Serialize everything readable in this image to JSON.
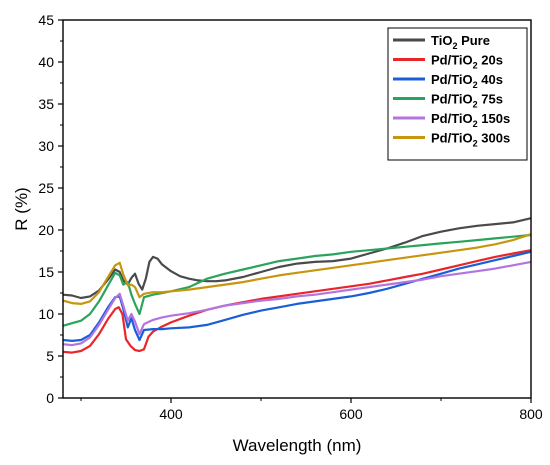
{
  "chart_data": {
    "type": "line",
    "title": "",
    "xlabel": "Wavelength (nm)",
    "ylabel": "R (%)",
    "xlim": [
      280,
      800
    ],
    "ylim": [
      0,
      45
    ],
    "xticks": [
      400,
      600,
      800
    ],
    "yticks": [
      0,
      5,
      10,
      15,
      20,
      25,
      30,
      35,
      40,
      45
    ],
    "grid": false,
    "legend_position": "top-right",
    "series": [
      {
        "name": "TiO2 Pure",
        "legend": {
          "base": "TiO",
          "sub": "2",
          "rest": " Pure"
        },
        "color": "#4a4a4a",
        "x": [
          280,
          290,
          300,
          310,
          320,
          330,
          338,
          343,
          347,
          352,
          356,
          360,
          364,
          368,
          372,
          376,
          380,
          385,
          390,
          400,
          410,
          420,
          430,
          440,
          450,
          460,
          480,
          500,
          520,
          540,
          560,
          580,
          600,
          620,
          640,
          660,
          680,
          700,
          720,
          740,
          760,
          780,
          800
        ],
        "y": [
          12.3,
          12.2,
          11.9,
          12.1,
          12.8,
          14.1,
          15.3,
          15.0,
          14.0,
          13.5,
          14.3,
          14.8,
          13.6,
          12.9,
          14.2,
          16.2,
          16.8,
          16.6,
          15.9,
          15.1,
          14.5,
          14.2,
          14.0,
          13.9,
          13.9,
          14.0,
          14.4,
          15.0,
          15.6,
          16.0,
          16.2,
          16.3,
          16.6,
          17.2,
          17.8,
          18.5,
          19.3,
          19.8,
          20.2,
          20.5,
          20.7,
          20.9,
          21.4
        ]
      },
      {
        "name": "Pd/TiO2 20s",
        "legend": {
          "base": "Pd/TiO",
          "sub": "2",
          "rest": " 20s"
        },
        "color": "#e8262a",
        "x": [
          280,
          290,
          300,
          310,
          320,
          330,
          338,
          342,
          346,
          350,
          355,
          360,
          365,
          370,
          375,
          380,
          390,
          400,
          420,
          440,
          460,
          480,
          500,
          520,
          540,
          560,
          580,
          600,
          620,
          640,
          660,
          680,
          700,
          720,
          740,
          760,
          780,
          800
        ],
        "y": [
          5.5,
          5.4,
          5.6,
          6.2,
          7.6,
          9.4,
          10.6,
          10.8,
          10.0,
          7.0,
          6.2,
          5.7,
          5.6,
          5.8,
          7.3,
          7.9,
          8.5,
          9.0,
          9.8,
          10.5,
          11.0,
          11.4,
          11.8,
          12.1,
          12.4,
          12.7,
          13.0,
          13.3,
          13.6,
          14.0,
          14.4,
          14.8,
          15.3,
          15.8,
          16.3,
          16.8,
          17.2,
          17.6
        ]
      },
      {
        "name": "Pd/TiO2 40s",
        "legend": {
          "base": "Pd/TiO",
          "sub": "2",
          "rest": " 40s"
        },
        "color": "#1a5fd8",
        "x": [
          280,
          290,
          300,
          310,
          320,
          330,
          338,
          343,
          347,
          352,
          356,
          360,
          365,
          370,
          380,
          390,
          400,
          420,
          440,
          460,
          480,
          500,
          520,
          540,
          560,
          580,
          600,
          620,
          640,
          660,
          680,
          700,
          720,
          740,
          760,
          780,
          800
        ],
        "y": [
          6.9,
          6.8,
          6.9,
          7.5,
          9.0,
          10.8,
          12.0,
          12.1,
          10.6,
          8.4,
          9.5,
          8.1,
          6.9,
          8.1,
          8.2,
          8.2,
          8.3,
          8.4,
          8.7,
          9.3,
          9.9,
          10.4,
          10.8,
          11.2,
          11.5,
          11.8,
          12.1,
          12.5,
          13.0,
          13.6,
          14.2,
          14.8,
          15.4,
          15.9,
          16.4,
          16.9,
          17.4
        ]
      },
      {
        "name": "Pd/TiO2 75s",
        "legend": {
          "base": "Pd/TiO",
          "sub": "2",
          "rest": " 75s"
        },
        "color": "#2aa45c",
        "x": [
          280,
          290,
          300,
          310,
          320,
          330,
          338,
          343,
          347,
          352,
          356,
          360,
          365,
          370,
          380,
          390,
          400,
          420,
          440,
          460,
          480,
          500,
          520,
          540,
          560,
          580,
          600,
          620,
          640,
          660,
          680,
          700,
          720,
          740,
          760,
          780,
          800
        ],
        "y": [
          8.6,
          8.9,
          9.2,
          10.0,
          11.5,
          13.4,
          14.9,
          14.6,
          13.5,
          13.8,
          12.3,
          11.2,
          10.0,
          12.0,
          12.3,
          12.5,
          12.7,
          13.2,
          14.2,
          14.8,
          15.3,
          15.8,
          16.3,
          16.6,
          16.9,
          17.1,
          17.4,
          17.6,
          17.8,
          18.0,
          18.2,
          18.4,
          18.6,
          18.8,
          19.0,
          19.2,
          19.4
        ]
      },
      {
        "name": "Pd/TiO2 150s",
        "legend": {
          "base": "Pd/TiO",
          "sub": "2",
          "rest": " 150s"
        },
        "color": "#b474e0",
        "x": [
          280,
          290,
          300,
          310,
          320,
          330,
          338,
          343,
          347,
          352,
          356,
          360,
          365,
          370,
          380,
          390,
          400,
          420,
          440,
          460,
          480,
          500,
          520,
          540,
          560,
          580,
          600,
          620,
          640,
          660,
          680,
          700,
          720,
          740,
          760,
          780,
          800
        ],
        "y": [
          6.4,
          6.3,
          6.5,
          7.2,
          8.7,
          10.5,
          11.9,
          12.4,
          11.0,
          9.2,
          10.0,
          9.1,
          7.6,
          8.8,
          9.3,
          9.6,
          9.8,
          10.1,
          10.5,
          11.0,
          11.3,
          11.6,
          11.8,
          12.1,
          12.3,
          12.6,
          12.9,
          13.2,
          13.5,
          13.8,
          14.1,
          14.5,
          14.8,
          15.1,
          15.4,
          15.8,
          16.2
        ]
      },
      {
        "name": "Pd/TiO2 300s",
        "legend": {
          "base": "Pd/TiO",
          "sub": "2",
          "rest": " 300s"
        },
        "color": "#c8960e",
        "x": [
          280,
          290,
          300,
          310,
          320,
          330,
          338,
          343,
          347,
          352,
          356,
          360,
          365,
          370,
          380,
          390,
          400,
          420,
          440,
          460,
          480,
          500,
          520,
          540,
          560,
          580,
          600,
          620,
          640,
          660,
          680,
          700,
          720,
          740,
          760,
          780,
          800
        ],
        "y": [
          11.6,
          11.3,
          11.2,
          11.5,
          12.6,
          14.4,
          15.8,
          16.1,
          14.7,
          13.4,
          13.5,
          13.2,
          12.0,
          12.4,
          12.6,
          12.6,
          12.7,
          12.9,
          13.2,
          13.5,
          13.8,
          14.2,
          14.6,
          14.9,
          15.2,
          15.5,
          15.8,
          16.1,
          16.4,
          16.7,
          17.0,
          17.3,
          17.6,
          17.9,
          18.3,
          18.8,
          19.5
        ]
      }
    ]
  }
}
